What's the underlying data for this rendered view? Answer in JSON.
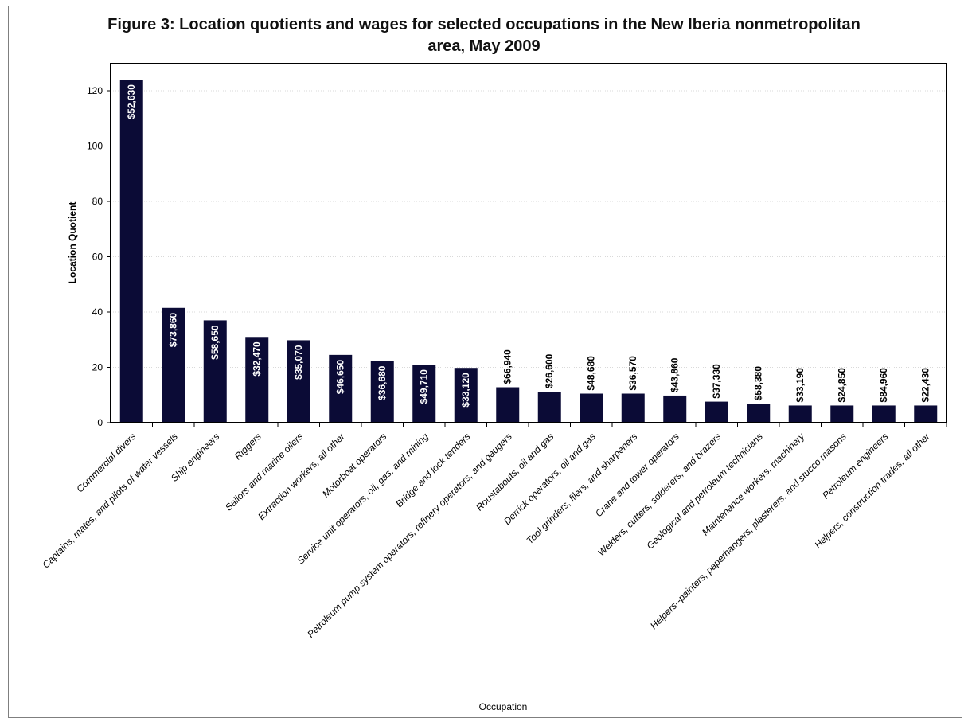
{
  "chart_data": {
    "type": "bar",
    "title": "Figure 3:  Location quotients and wages for selected occupations in the New Iberia nonmetropolitan",
    "title_line2": "area, May 2009",
    "xlabel": "Occupation",
    "ylabel": "Location Quotient",
    "ylim": [
      0,
      130
    ],
    "yticks": [
      0,
      20,
      40,
      60,
      80,
      100,
      120
    ],
    "grid": true,
    "legend": "none",
    "bar_color": "#0b0b36",
    "categories": [
      "Commercial divers",
      "Captains, mates, and pilots of water vessels",
      "Ship engineers",
      "Riggers",
      "Sailors and marine oilers",
      "Extraction workers, all other",
      "Motorboat operators",
      "Service unit operators, oil, gas, and mining",
      "Bridge and lock tenders",
      "Petroleum pump system operators, refinery operators, and gaugers",
      "Roustabouts, oil and gas",
      "Derrick operators, oil and gas",
      "Tool grinders, filers, and sharpeners",
      "Crane and tower operators",
      "Welders, cutters, solderers, and brazers",
      "Geological and petroleum technicians",
      "Maintenance workers, machinery",
      "Helpers--painters, paperhangers, plasterers, and stucco masons",
      "Petroleum engineers",
      "Helpers, construction trades, all other"
    ],
    "values": [
      124,
      41.5,
      37,
      31,
      29.8,
      24.5,
      22.3,
      21,
      19.8,
      12.8,
      11.2,
      10.5,
      10.5,
      9.8,
      7.6,
      6.8,
      6.2,
      6.2,
      6.2,
      6.2
    ],
    "data_labels": [
      "$52,630",
      "$73,860",
      "$58,650",
      "$32,470",
      "$35,070",
      "$46,650",
      "$36,680",
      "$49,710",
      "$33,120",
      "$66,940",
      "$26,600",
      "$48,680",
      "$36,570",
      "$43,860",
      "$37,330",
      "$58,380",
      "$33,190",
      "$24,850",
      "$84,960",
      "$22,430"
    ]
  }
}
